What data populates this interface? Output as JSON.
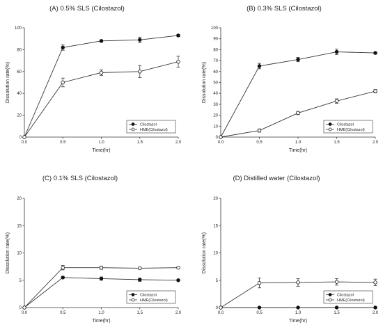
{
  "chart_data": [
    {
      "type": "line",
      "title": "(A) 0.5% SLS (Cilostazol)",
      "xlabel": "Time(hr)",
      "ylabel": "Dissolution rate(%)",
      "xlim": [
        0,
        2
      ],
      "ylim": [
        0,
        100
      ],
      "xticks": [
        "0.0",
        "0.5",
        "1.0",
        "1.5",
        "2.0"
      ],
      "yticks": [
        "0",
        "20",
        "40",
        "60",
        "80",
        "100"
      ],
      "grid": false,
      "legend": "bottom-right",
      "x": [
        0,
        0.5,
        1.0,
        1.5,
        2.0
      ],
      "series": [
        {
          "name": "Cilostazol",
          "marker": "filled-circle",
          "values": [
            0,
            82,
            88,
            89,
            93
          ],
          "errors": [
            0,
            2.5,
            1,
            2.5,
            1
          ]
        },
        {
          "name": "HME(Cilostazol)",
          "marker": "open-circle",
          "values": [
            0,
            50,
            59,
            60,
            69
          ],
          "errors": [
            0,
            4,
            2.5,
            5.5,
            5
          ]
        }
      ]
    },
    {
      "type": "line",
      "title": "(B) 0.3% SLS (Cilostazol)",
      "xlabel": "Time(hr)",
      "ylabel": "Dissolution rate(%)",
      "xlim": [
        0,
        2
      ],
      "ylim": [
        0,
        100
      ],
      "xticks": [
        "0.0",
        "0.5",
        "1.0",
        "1.5",
        "2.0"
      ],
      "yticks": [
        "0",
        "10",
        "20",
        "30",
        "40",
        "50",
        "60",
        "70",
        "80",
        "90",
        "100"
      ],
      "grid": false,
      "legend": "bottom-right",
      "x": [
        0,
        0.5,
        1.0,
        1.5,
        2.0
      ],
      "series": [
        {
          "name": "Cilostazol",
          "marker": "filled-circle",
          "values": [
            0,
            65,
            71,
            78,
            77
          ],
          "errors": [
            0,
            2.5,
            2,
            2.5,
            1
          ]
        },
        {
          "name": "HME(Cilostazol)",
          "marker": "open-circle",
          "values": [
            0,
            6,
            22,
            33,
            42
          ],
          "errors": [
            0,
            1.5,
            1.5,
            2,
            1.5
          ]
        }
      ]
    },
    {
      "type": "line",
      "title": "(C) 0.1% SLS (Cilostazol)",
      "xlabel": "Time(hr)",
      "ylabel": "Dissolution rate(%)",
      "xlim": [
        0,
        2
      ],
      "ylim": [
        0,
        20
      ],
      "xticks": [
        "0.0",
        "0.5",
        "1.0",
        "1.5",
        "2.0"
      ],
      "yticks": [
        "0",
        "5",
        "10",
        "15",
        "20"
      ],
      "grid": false,
      "legend": "bottom-right",
      "x": [
        0,
        0.5,
        1.0,
        1.5,
        2.0
      ],
      "series": [
        {
          "name": "Cilostazol",
          "marker": "filled-circle",
          "values": [
            0,
            5.5,
            5.3,
            5.1,
            5.0
          ],
          "errors": [
            0,
            0.15,
            0.3,
            0.3,
            0.15
          ]
        },
        {
          "name": "HME(Cilostazol)",
          "marker": "open-circle",
          "values": [
            0,
            7.3,
            7.3,
            7.2,
            7.3
          ],
          "errors": [
            0,
            0.4,
            0.3,
            0.15,
            0.15
          ]
        }
      ]
    },
    {
      "type": "line",
      "title": "(D) Distilled water (Cilostazol)",
      "xlabel": "Time(hr)",
      "ylabel": "Dissolution rate(%)",
      "xlim": [
        0,
        2
      ],
      "ylim": [
        0,
        20
      ],
      "xticks": [
        "0.0",
        "0.5",
        "1.0",
        "1.5",
        "2.0"
      ],
      "yticks": [
        "0",
        "5",
        "10",
        "15",
        "20"
      ],
      "grid": false,
      "legend": "bottom-right",
      "x": [
        0,
        0.5,
        1.0,
        1.5,
        2.0
      ],
      "series": [
        {
          "name": "Cilostazol",
          "marker": "filled-circle",
          "values": [
            0,
            0,
            0,
            0,
            0
          ],
          "errors": [
            0,
            0,
            0,
            0,
            0
          ]
        },
        {
          "name": "HME(Cilostazol)",
          "marker": "open-circle",
          "values": [
            0,
            4.5,
            4.6,
            4.7,
            4.6
          ],
          "errors": [
            0,
            0.9,
            0.7,
            0.6,
            0.6
          ]
        }
      ]
    }
  ]
}
